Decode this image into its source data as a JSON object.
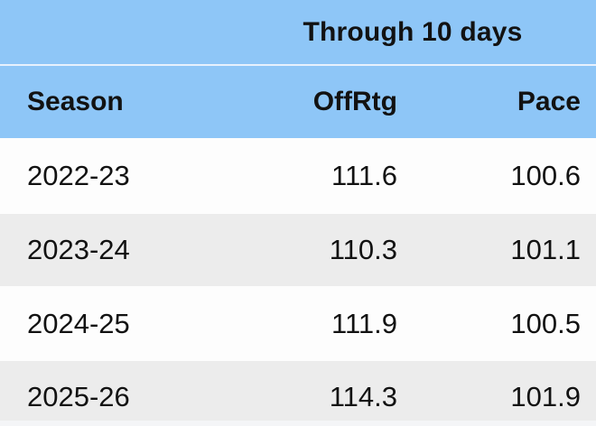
{
  "chart_data": {
    "type": "table",
    "title": "Through 10 days",
    "columns": [
      "Season",
      "OffRtg",
      "Pace"
    ],
    "rows": [
      [
        "2022-23",
        "111.6",
        "100.6"
      ],
      [
        "2023-24",
        "110.3",
        "101.1"
      ],
      [
        "2024-25",
        "111.9",
        "100.5"
      ],
      [
        "2025-26",
        "114.3",
        "101.9"
      ]
    ],
    "layout_hints": {
      "group_header_spans": "OffRtg and Pace columns",
      "season_align": "left",
      "numeric_align": "right",
      "row_striping": "white / light-gray alternating"
    }
  },
  "colors": {
    "header_blue": "#8ec6f7",
    "header_divider": "#e6f1fd",
    "row_white": "#fdfdfd",
    "row_gray": "#ececec",
    "bottom_strip": "#f4f5f7",
    "text": "#121212"
  }
}
